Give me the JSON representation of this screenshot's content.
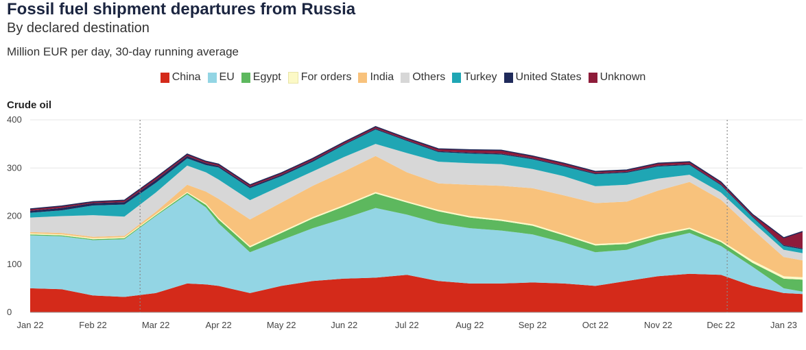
{
  "title": "Fossil fuel shipment departures from Russia",
  "subtitle": "By declared destination",
  "units": "Million EUR per day, 30-day running average",
  "panel_label": "Crude oil",
  "legend": [
    {
      "name": "China",
      "color": "#d42a1a"
    },
    {
      "name": "EU",
      "color": "#93d5e4"
    },
    {
      "name": "Egypt",
      "color": "#5db85e"
    },
    {
      "name": "For orders",
      "color": "#fcf9c6"
    },
    {
      "name": "India",
      "color": "#f8c27c"
    },
    {
      "name": "Others",
      "color": "#d7d7d7"
    },
    {
      "name": "Turkey",
      "color": "#1fa6b4"
    },
    {
      "name": "United States",
      "color": "#1f2a5a"
    },
    {
      "name": "Unknown",
      "color": "#8e1c3a"
    }
  ],
  "chart_data": {
    "type": "area",
    "stacked": true,
    "title": "Crude oil",
    "ylabel": "Million EUR per day, 30-day running average",
    "ylim": [
      0,
      400
    ],
    "yticks": [
      0,
      100,
      200,
      300,
      400
    ],
    "xlim": [
      0,
      12.3
    ],
    "xticks": [
      {
        "label": "Jan 22",
        "x": 0
      },
      {
        "label": "Feb 22",
        "x": 1
      },
      {
        "label": "Mar 22",
        "x": 2
      },
      {
        "label": "Apr 22",
        "x": 3
      },
      {
        "label": "May 22",
        "x": 4
      },
      {
        "label": "Jun 22",
        "x": 5
      },
      {
        "label": "Jul 22",
        "x": 6
      },
      {
        "label": "Aug 22",
        "x": 7
      },
      {
        "label": "Sep 22",
        "x": 8
      },
      {
        "label": "Oct 22",
        "x": 9
      },
      {
        "label": "Nov 22",
        "x": 10
      },
      {
        "label": "Dec 22",
        "x": 11
      },
      {
        "label": "Jan 23",
        "x": 12
      }
    ],
    "vlines": [
      1.75,
      11.1
    ],
    "x": [
      0,
      0.5,
      1,
      1.5,
      2,
      2.5,
      2.8,
      3,
      3.5,
      4,
      4.5,
      5,
      5.5,
      6,
      6.5,
      7,
      7.5,
      8,
      8.5,
      9,
      9.5,
      10,
      10.5,
      11,
      11.5,
      12,
      12.3
    ],
    "series": [
      {
        "name": "China",
        "values": [
          50,
          48,
          35,
          32,
          40,
          60,
          58,
          55,
          40,
          55,
          65,
          70,
          72,
          78,
          65,
          60,
          60,
          62,
          60,
          55,
          65,
          75,
          80,
          78,
          55,
          40,
          38
        ]
      },
      {
        "name": "EU",
        "values": [
          110,
          110,
          115,
          120,
          160,
          185,
          160,
          130,
          85,
          95,
          110,
          125,
          145,
          125,
          120,
          115,
          110,
          100,
          85,
          70,
          65,
          75,
          85,
          60,
          40,
          10,
          5
        ]
      },
      {
        "name": "Egypt",
        "values": [
          2,
          2,
          2,
          2,
          2,
          3,
          5,
          8,
          10,
          15,
          20,
          25,
          30,
          25,
          25,
          22,
          20,
          18,
          15,
          14,
          12,
          10,
          8,
          8,
          8,
          20,
          25
        ]
      },
      {
        "name": "For orders",
        "values": [
          2,
          2,
          2,
          2,
          2,
          2,
          3,
          3,
          3,
          3,
          3,
          3,
          3,
          3,
          3,
          3,
          3,
          3,
          3,
          3,
          3,
          3,
          3,
          3,
          5,
          5,
          5
        ]
      },
      {
        "name": "India",
        "values": [
          3,
          3,
          3,
          3,
          5,
          15,
          25,
          40,
          55,
          60,
          65,
          70,
          75,
          60,
          55,
          65,
          70,
          75,
          80,
          85,
          85,
          90,
          95,
          85,
          65,
          40,
          35
        ]
      },
      {
        "name": "Others",
        "values": [
          30,
          35,
          45,
          40,
          40,
          40,
          40,
          40,
          40,
          35,
          30,
          30,
          25,
          40,
          45,
          45,
          45,
          40,
          40,
          35,
          35,
          25,
          15,
          15,
          15,
          15,
          15
        ]
      },
      {
        "name": "Turkey",
        "values": [
          10,
          12,
          20,
          25,
          20,
          15,
          15,
          25,
          25,
          20,
          20,
          25,
          30,
          25,
          20,
          20,
          20,
          20,
          20,
          25,
          25,
          25,
          20,
          15,
          10,
          8,
          8
        ]
      },
      {
        "name": "United States",
        "values": [
          4,
          5,
          5,
          5,
          6,
          5,
          4,
          3,
          3,
          3,
          3,
          2,
          2,
          2,
          2,
          2,
          2,
          2,
          2,
          2,
          2,
          2,
          2,
          2,
          2,
          2,
          2
        ]
      },
      {
        "name": "Unknown",
        "values": [
          4,
          4,
          3,
          4,
          5,
          4,
          4,
          4,
          4,
          4,
          4,
          4,
          4,
          4,
          5,
          6,
          7,
          5,
          5,
          4,
          4,
          5,
          5,
          5,
          4,
          15,
          35
        ]
      }
    ]
  }
}
